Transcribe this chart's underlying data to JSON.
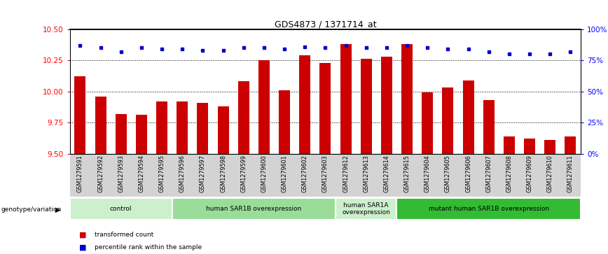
{
  "title": "GDS4873 / 1371714_at",
  "samples": [
    "GSM1279591",
    "GSM1279592",
    "GSM1279593",
    "GSM1279594",
    "GSM1279595",
    "GSM1279596",
    "GSM1279597",
    "GSM1279598",
    "GSM1279599",
    "GSM1279600",
    "GSM1279601",
    "GSM1279602",
    "GSM1279603",
    "GSM1279612",
    "GSM1279613",
    "GSM1279614",
    "GSM1279615",
    "GSM1279604",
    "GSM1279605",
    "GSM1279606",
    "GSM1279607",
    "GSM1279608",
    "GSM1279609",
    "GSM1279610",
    "GSM1279611"
  ],
  "bar_values": [
    10.12,
    9.96,
    9.82,
    9.81,
    9.92,
    9.92,
    9.91,
    9.88,
    10.08,
    10.25,
    10.01,
    10.29,
    10.23,
    10.38,
    10.26,
    10.28,
    10.38,
    9.99,
    10.03,
    10.09,
    9.93,
    9.64,
    9.62,
    9.61,
    9.64
  ],
  "percentile_values": [
    87,
    85,
    82,
    85,
    84,
    84,
    83,
    83,
    85,
    85,
    84,
    86,
    85,
    87,
    85,
    85,
    87,
    85,
    84,
    84,
    82,
    80,
    80,
    80,
    82
  ],
  "groups": [
    {
      "label": "control",
      "start": 0,
      "end": 4,
      "color": "#ccf0cc"
    },
    {
      "label": "human SAR1B overexpression",
      "start": 5,
      "end": 12,
      "color": "#99dd99"
    },
    {
      "label": "human SAR1A\noverexpression",
      "start": 13,
      "end": 15,
      "color": "#ccf0cc"
    },
    {
      "label": "mutant human SAR1B overexpression",
      "start": 16,
      "end": 24,
      "color": "#33bb33"
    }
  ],
  "ylim": [
    9.5,
    10.5
  ],
  "yticks_left": [
    9.5,
    9.75,
    10.0,
    10.25,
    10.5
  ],
  "yticks_right": [
    0,
    25,
    50,
    75,
    100
  ],
  "bar_color": "#cc0000",
  "dot_color": "#0000cc",
  "bar_width": 0.55
}
